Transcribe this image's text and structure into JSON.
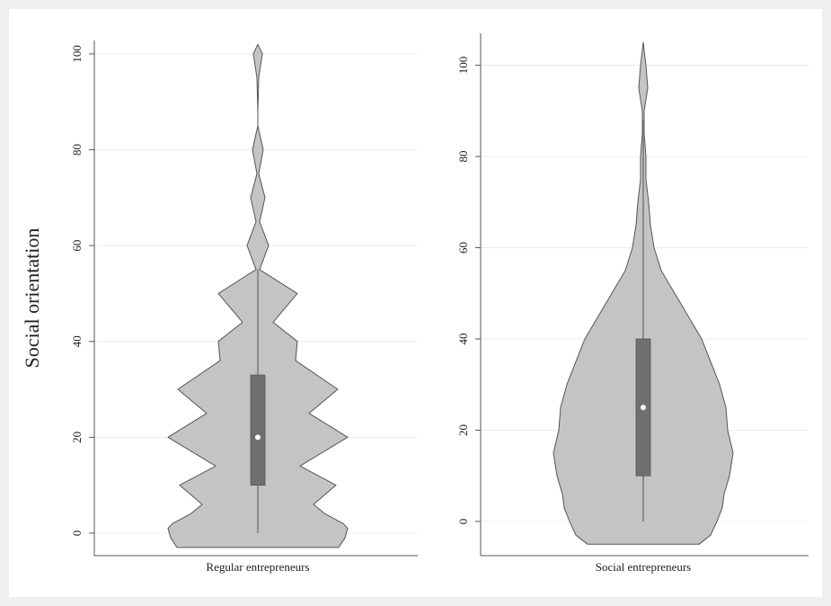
{
  "chart_data": [
    {
      "type": "violin",
      "ylabel": "Social orientation",
      "category": "Regular entrepreneurs",
      "ylim": [
        -4.7,
        102.8
      ],
      "yticks": [
        0,
        20,
        40,
        60,
        80,
        100
      ],
      "grid": true,
      "color": "#c4c4c4",
      "box_color": "#6f6f6f",
      "q1": 10,
      "median": 20,
      "q3": 33,
      "lower_whisker": 0,
      "upper_whisker": 55,
      "density": {
        "y": [
          -3,
          -1,
          1,
          2,
          4,
          6,
          10,
          14,
          20,
          25,
          30,
          36,
          40,
          44,
          50,
          55,
          60,
          65,
          70,
          75,
          80,
          85,
          88,
          95,
          100,
          102
        ],
        "width": [
          0.9,
          0.97,
          1.0,
          0.95,
          0.75,
          0.62,
          0.87,
          0.47,
          1.0,
          0.57,
          0.89,
          0.42,
          0.44,
          0.17,
          0.44,
          0.02,
          0.12,
          0.02,
          0.08,
          0.01,
          0.06,
          0.0,
          0.0,
          0.01,
          0.05,
          0.0
        ]
      }
    },
    {
      "type": "violin",
      "category": "Social entrepreneurs",
      "ylim": [
        -7.5,
        107
      ],
      "yticks": [
        0,
        20,
        40,
        60,
        80,
        100
      ],
      "grid": true,
      "color": "#c4c4c4",
      "box_color": "#6f6f6f",
      "q1": 10,
      "median": 25,
      "q3": 40,
      "lower_whisker": 0,
      "upper_whisker": 88,
      "density": {
        "y": [
          -5,
          -3,
          0,
          3,
          6,
          10,
          15,
          20,
          25,
          30,
          35,
          40,
          45,
          50,
          55,
          60,
          65,
          70,
          75,
          80,
          85,
          90,
          95,
          100,
          105
        ],
        "width": [
          0.62,
          0.75,
          0.82,
          0.88,
          0.9,
          0.96,
          1.0,
          0.94,
          0.92,
          0.85,
          0.75,
          0.65,
          0.5,
          0.35,
          0.2,
          0.12,
          0.08,
          0.06,
          0.03,
          0.03,
          0.01,
          0.01,
          0.05,
          0.03,
          0.0
        ]
      }
    }
  ]
}
